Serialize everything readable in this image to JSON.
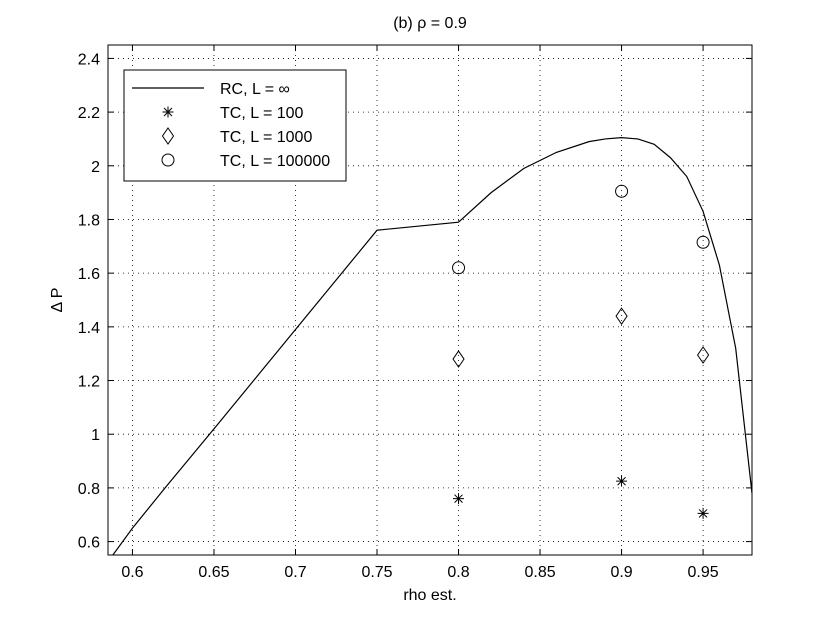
{
  "chart_data": {
    "type": "line",
    "title": "(b) ρ = 0.9",
    "xlabel": "rho est.",
    "ylabel": "Δ P",
    "xlim": [
      0.585,
      0.98
    ],
    "ylim": [
      0.55,
      2.45
    ],
    "xticks": [
      0.6,
      0.65,
      0.7,
      0.75,
      0.8,
      0.85,
      0.9,
      0.95
    ],
    "xtick_labels": [
      "0.6",
      "0.65",
      "0.7",
      "0.75",
      "0.8",
      "0.85",
      "0.9",
      "0.95"
    ],
    "yticks": [
      0.6,
      0.8,
      1.0,
      1.2,
      1.4,
      1.6,
      1.8,
      2.0,
      2.2,
      2.4
    ],
    "ytick_labels": [
      "0.6",
      "0.8",
      "1",
      "1.2",
      "1.4",
      "1.6",
      "1.8",
      "2",
      "2.2",
      "2.4"
    ],
    "grid": true,
    "legend_position": "top-left",
    "series": [
      {
        "name": "RC, L = ∞",
        "kind": "line",
        "color": "#000000",
        "x": [
          0.588,
          0.6,
          0.62,
          0.65,
          0.7,
          0.75,
          0.8,
          0.82,
          0.84,
          0.86,
          0.88,
          0.89,
          0.9,
          0.91,
          0.92,
          0.93,
          0.94,
          0.95,
          0.96,
          0.97,
          0.98
        ],
        "y": [
          0.55,
          0.65,
          0.8,
          1.02,
          1.39,
          1.76,
          1.79,
          1.9,
          1.99,
          2.05,
          2.09,
          2.1,
          2.105,
          2.1,
          2.08,
          2.03,
          1.96,
          1.83,
          1.63,
          1.32,
          0.78
        ]
      },
      {
        "name": "TC, L = 100",
        "kind": "marker",
        "marker": "asterisk",
        "x": [
          0.8,
          0.9,
          0.95
        ],
        "y": [
          0.76,
          0.825,
          0.705
        ]
      },
      {
        "name": "TC, L = 1000",
        "kind": "marker",
        "marker": "diamond",
        "x": [
          0.8,
          0.9,
          0.95
        ],
        "y": [
          1.28,
          1.44,
          1.295
        ]
      },
      {
        "name": "TC, L = 100000",
        "kind": "marker",
        "marker": "circle",
        "x": [
          0.8,
          0.9,
          0.95
        ],
        "y": [
          1.62,
          1.905,
          1.715
        ]
      }
    ]
  }
}
